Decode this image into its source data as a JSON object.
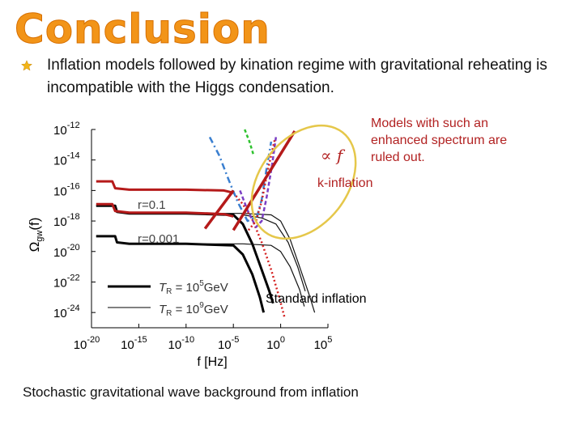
{
  "slide": {
    "title": "Conclusion",
    "bullet_text": "Inflation models followed by kination regime with gravitational reheating is incompatible with the Higgs condensation.",
    "caption": "Stochastic gravitational wave background from inflation",
    "accent_color": "#f29418",
    "bullet_icon": "star-icon"
  },
  "annotations": {
    "ruled_out": "Models with such an enhanced spectrum are ruled out.",
    "k_inflation": "k-inflation",
    "standard_inflation": "Standard inflation",
    "proportional": "∝ f",
    "annotation_color": "#b22222",
    "ellipse_color": "#e5c74a"
  },
  "chart_data": {
    "type": "line",
    "xlabel": "f [Hz]",
    "ylabel": "Ω",
    "ylabel_sub": "gw",
    "ylabel_suffix": "(f)",
    "x_scale": "log",
    "y_scale": "log",
    "xlim_exp": [
      -20,
      5
    ],
    "ylim_exp": [
      -25,
      -12
    ],
    "x_ticks": [
      {
        "base": "10",
        "exp": "-20"
      },
      {
        "base": "10",
        "exp": "-15"
      },
      {
        "base": "10",
        "exp": "-10"
      },
      {
        "base": "10",
        "exp": "-5"
      },
      {
        "base": "10",
        "exp": "0"
      },
      {
        "base": "10",
        "exp": "5"
      }
    ],
    "y_ticks": [
      {
        "base": "10",
        "exp": "-12"
      },
      {
        "base": "10",
        "exp": "-14"
      },
      {
        "base": "10",
        "exp": "-16"
      },
      {
        "base": "10",
        "exp": "-18"
      },
      {
        "base": "10",
        "exp": "-20"
      },
      {
        "base": "10",
        "exp": "-22"
      },
      {
        "base": "10",
        "exp": "-24"
      }
    ],
    "labels": {
      "r_high": "r=0.1",
      "r_low": "r=0.001"
    },
    "legend": [
      {
        "label_t": "T",
        "label_sub": "R",
        "label_mid": " = 10",
        "label_exp": "5",
        "label_unit": "GeV",
        "style": "thick"
      },
      {
        "label_t": "T",
        "label_sub": "R",
        "label_mid": " = 10",
        "label_exp": "9",
        "label_unit": "GeV",
        "style": "thin"
      }
    ],
    "series": [
      {
        "style": "thick-black",
        "points": [
          [
            -19.5,
            -17.0
          ],
          [
            -17.5,
            -17.0
          ],
          [
            -17.3,
            -17.4
          ],
          [
            -16,
            -17.5
          ],
          [
            -10,
            -17.5
          ],
          [
            -5,
            -17.6
          ],
          [
            -4,
            -18.2
          ],
          [
            -3,
            -19.5
          ],
          [
            -2,
            -21.2
          ],
          [
            -1.2,
            -22.6
          ],
          [
            -0.8,
            -23.4
          ]
        ]
      },
      {
        "style": "thick-black",
        "points": [
          [
            -19.5,
            -19.0
          ],
          [
            -17.5,
            -19.0
          ],
          [
            -17.3,
            -19.4
          ],
          [
            -16,
            -19.5
          ],
          [
            -10,
            -19.5
          ],
          [
            -5,
            -19.6
          ],
          [
            -4,
            -20.2
          ],
          [
            -3,
            -21.5
          ],
          [
            -2.2,
            -23.0
          ],
          [
            -1.8,
            -24.0
          ]
        ]
      },
      {
        "style": "thin-black",
        "points": [
          [
            -19.5,
            -17.0
          ],
          [
            -17.5,
            -17.0
          ],
          [
            -17.3,
            -17.4
          ],
          [
            -16,
            -17.5
          ],
          [
            -10,
            -17.5
          ],
          [
            -4,
            -17.5
          ],
          [
            -1,
            -17.6
          ],
          [
            0,
            -18.0
          ],
          [
            1,
            -19.2
          ],
          [
            2,
            -21.0
          ],
          [
            3,
            -22.8
          ],
          [
            3.6,
            -24.0
          ]
        ]
      },
      {
        "style": "thin-black",
        "points": [
          [
            -19.5,
            -19.0
          ],
          [
            -17.5,
            -19.0
          ],
          [
            -17.3,
            -19.4
          ],
          [
            -16,
            -19.5
          ],
          [
            -10,
            -19.5
          ],
          [
            -4,
            -19.5
          ],
          [
            -1,
            -19.6
          ],
          [
            0,
            -20.0
          ],
          [
            1,
            -21.0
          ],
          [
            2,
            -22.5
          ],
          [
            2.5,
            -23.6
          ]
        ]
      },
      {
        "style": "thin-black",
        "points": [
          [
            -4,
            -17.6
          ],
          [
            -2,
            -17.8
          ],
          [
            -0.5,
            -18.2
          ],
          [
            0.8,
            -19.4
          ],
          [
            1.8,
            -21.0
          ],
          [
            2.6,
            -22.6
          ]
        ]
      },
      {
        "style": "red-solid",
        "points": [
          [
            -19.5,
            -15.4
          ],
          [
            -17.8,
            -15.4
          ],
          [
            -17.5,
            -15.85
          ],
          [
            -16,
            -15.95
          ],
          [
            -10,
            -15.95
          ],
          [
            -6,
            -16.0
          ],
          [
            -5,
            -16.15
          ]
        ]
      },
      {
        "style": "red-solid",
        "points": [
          [
            -19.5,
            -16.9
          ],
          [
            -17.8,
            -16.9
          ],
          [
            -17.5,
            -17.35
          ],
          [
            -16,
            -17.45
          ],
          [
            -10,
            -17.45
          ],
          [
            -6,
            -17.55
          ],
          [
            -5,
            -17.7
          ]
        ]
      },
      {
        "style": "red-dotted",
        "points": [
          [
            -5,
            -16.15
          ],
          [
            -4,
            -16.9
          ],
          [
            -3,
            -17.9
          ],
          [
            -2,
            -19.4
          ],
          [
            -1,
            -21.2
          ],
          [
            -0.2,
            -22.9
          ],
          [
            0.4,
            -24.3
          ]
        ]
      },
      {
        "style": "blue-dashdot",
        "points": [
          [
            -7.5,
            -12.5
          ],
          [
            -6.5,
            -13.7
          ],
          [
            -5.5,
            -15.3
          ],
          [
            -4.5,
            -16.8
          ],
          [
            -3.5,
            -18.0
          ],
          [
            -2.5,
            -17.7
          ],
          [
            -2.0,
            -16.6
          ],
          [
            -1.5,
            -14.6
          ],
          [
            -1.0,
            -12.8
          ]
        ]
      },
      {
        "style": "green-dashed",
        "points": [
          [
            -3.8,
            -12.0
          ],
          [
            -3.3,
            -12.8
          ],
          [
            -2.9,
            -13.6
          ]
        ]
      },
      {
        "style": "purple-dashed",
        "points": [
          [
            -4.3,
            -16.0
          ],
          [
            -3.5,
            -17.3
          ],
          [
            -2.6,
            -18.4
          ],
          [
            -2.0,
            -18.0
          ],
          [
            -1.5,
            -16.5
          ],
          [
            -0.9,
            -14.3
          ],
          [
            -0.5,
            -12.5
          ]
        ]
      },
      {
        "style": "red-dotted",
        "points": [
          [
            -3.4,
            -18.6
          ],
          [
            -2.6,
            -18.0
          ],
          [
            -2.0,
            -16.7
          ],
          [
            -1.3,
            -14.5
          ],
          [
            -0.6,
            -12.6
          ]
        ]
      },
      {
        "style": "darkred-line",
        "points": [
          [
            -5.0,
            -18.6
          ],
          [
            1.5,
            -12.1
          ]
        ]
      },
      {
        "style": "darkred-line",
        "points": [
          [
            -8.0,
            -18.5
          ],
          [
            -5.0,
            -16.0
          ]
        ]
      }
    ]
  }
}
